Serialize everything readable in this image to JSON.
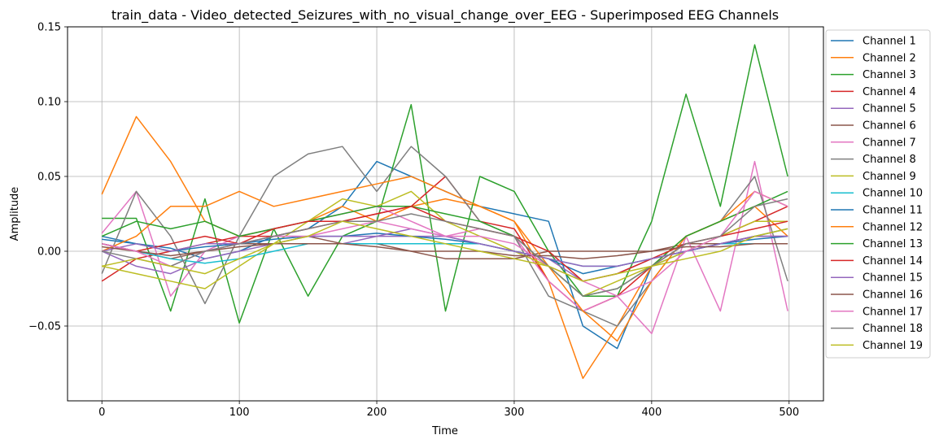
{
  "chart_data": {
    "type": "line",
    "title": "train_data - Video_detected_Seizures_with_no_visual_change_over_EEG - Superimposed EEG Channels",
    "xlabel": "Time",
    "ylabel": "Amplitude",
    "xlim": [
      -25,
      525
    ],
    "ylim": [
      -0.1,
      0.15
    ],
    "xticks": [
      0,
      100,
      200,
      300,
      400,
      500
    ],
    "xtick_labels": [
      "0",
      "100",
      "200",
      "300",
      "400",
      "500"
    ],
    "yticks": [
      -0.05,
      0.0,
      0.05,
      0.1,
      0.15
    ],
    "ytick_labels": [
      "−0.05",
      "0.00",
      "0.05",
      "0.10",
      "0.15"
    ],
    "grid": true,
    "legend": {
      "position": "outside-right"
    },
    "x": [
      0,
      25,
      50,
      75,
      100,
      125,
      150,
      175,
      200,
      225,
      250,
      275,
      300,
      325,
      350,
      375,
      400,
      425,
      450,
      475,
      499
    ],
    "series": [
      {
        "name": "Channel 1",
        "color": "#1f77b4",
        "values": [
          0.01,
          0.005,
          0.002,
          -0.005,
          0.0,
          0.01,
          0.015,
          0.03,
          0.06,
          0.05,
          0.04,
          0.03,
          0.025,
          0.02,
          -0.05,
          -0.065,
          -0.01,
          0.0,
          0.005,
          0.01,
          0.015
        ]
      },
      {
        "name": "Channel 2",
        "color": "#ff7f0e",
        "values": [
          0.038,
          0.09,
          0.06,
          0.02,
          0.01,
          0.015,
          0.02,
          0.03,
          0.02,
          0.03,
          0.035,
          0.03,
          0.02,
          -0.02,
          -0.085,
          -0.05,
          -0.01,
          0.01,
          0.02,
          0.03,
          0.01
        ]
      },
      {
        "name": "Channel 3",
        "color": "#2ca02c",
        "values": [
          0.022,
          0.022,
          -0.04,
          0.035,
          -0.048,
          0.015,
          -0.03,
          0.01,
          0.02,
          0.098,
          -0.04,
          0.05,
          0.04,
          0.0,
          -0.03,
          -0.03,
          0.02,
          0.105,
          0.03,
          0.138,
          0.05
        ]
      },
      {
        "name": "Channel 4",
        "color": "#d62728",
        "values": [
          -0.02,
          -0.005,
          0.0,
          0.005,
          0.01,
          0.01,
          0.015,
          0.02,
          0.025,
          0.03,
          0.05,
          0.02,
          0.015,
          -0.02,
          -0.04,
          -0.03,
          -0.01,
          0.005,
          0.01,
          0.02,
          0.03
        ]
      },
      {
        "name": "Channel 5",
        "color": "#9467bd",
        "values": [
          0.0,
          -0.01,
          -0.015,
          -0.005,
          0.0,
          0.005,
          0.005,
          0.005,
          0.01,
          0.01,
          0.01,
          0.005,
          0.0,
          -0.005,
          -0.02,
          -0.015,
          -0.005,
          0.0,
          0.005,
          0.01,
          0.01
        ]
      },
      {
        "name": "Channel 6",
        "color": "#8c564b",
        "values": [
          0.005,
          0.0,
          -0.005,
          0.0,
          0.005,
          0.005,
          0.01,
          0.005,
          0.005,
          0.0,
          -0.005,
          -0.005,
          -0.005,
          0.0,
          0.0,
          0.0,
          0.0,
          0.005,
          0.005,
          0.01,
          0.01
        ]
      },
      {
        "name": "Channel 7",
        "color": "#e377c2",
        "values": [
          0.012,
          0.04,
          -0.03,
          0.0,
          0.01,
          0.015,
          0.02,
          0.025,
          0.03,
          0.02,
          0.01,
          0.015,
          0.01,
          -0.02,
          -0.04,
          -0.03,
          -0.055,
          0.01,
          -0.04,
          0.06,
          -0.04
        ]
      },
      {
        "name": "Channel 8",
        "color": "#7f7f7f",
        "values": [
          -0.015,
          0.04,
          0.01,
          -0.035,
          0.01,
          0.05,
          0.065,
          0.07,
          0.04,
          0.07,
          0.05,
          0.02,
          0.01,
          -0.03,
          -0.04,
          -0.05,
          -0.02,
          0.01,
          0.02,
          0.05,
          -0.02
        ]
      },
      {
        "name": "Channel 9",
        "color": "#bcbd22",
        "values": [
          -0.01,
          -0.015,
          -0.02,
          -0.025,
          -0.01,
          0.005,
          0.02,
          0.035,
          0.03,
          0.04,
          0.02,
          0.01,
          0.0,
          -0.01,
          -0.03,
          -0.02,
          -0.01,
          0.0,
          0.01,
          0.02,
          0.02
        ]
      },
      {
        "name": "Channel 10",
        "color": "#17becf",
        "values": [
          0.005,
          0.0,
          -0.005,
          -0.008,
          -0.005,
          0.0,
          0.005,
          0.005,
          0.005,
          0.005,
          0.005,
          0.005,
          0.0,
          -0.005,
          -0.01,
          -0.01,
          -0.005,
          0.0,
          0.005,
          0.005,
          0.005
        ]
      },
      {
        "name": "Channel 11",
        "color": "#1f77b4",
        "values": [
          0.008,
          0.005,
          0.0,
          0.003,
          0.005,
          0.008,
          0.01,
          0.01,
          0.012,
          0.01,
          0.008,
          0.005,
          0.0,
          -0.005,
          -0.015,
          -0.01,
          -0.005,
          0.0,
          0.005,
          0.008,
          0.01
        ]
      },
      {
        "name": "Channel 12",
        "color": "#ff7f0e",
        "values": [
          0.0,
          0.01,
          0.03,
          0.03,
          0.04,
          0.03,
          0.035,
          0.04,
          0.045,
          0.05,
          0.04,
          0.03,
          0.02,
          -0.01,
          -0.04,
          -0.06,
          -0.02,
          0.01,
          0.02,
          0.04,
          0.03
        ]
      },
      {
        "name": "Channel 13",
        "color": "#2ca02c",
        "values": [
          0.01,
          0.02,
          0.015,
          0.02,
          0.01,
          0.015,
          0.02,
          0.025,
          0.03,
          0.03,
          0.025,
          0.02,
          0.01,
          -0.01,
          -0.03,
          -0.025,
          -0.01,
          0.01,
          0.02,
          0.03,
          0.04
        ]
      },
      {
        "name": "Channel 14",
        "color": "#d62728",
        "values": [
          0.005,
          0.0,
          0.005,
          0.01,
          0.005,
          0.015,
          0.02,
          0.02,
          0.025,
          0.03,
          0.02,
          0.015,
          0.01,
          0.0,
          -0.02,
          -0.015,
          -0.005,
          0.005,
          0.01,
          0.015,
          0.02
        ]
      },
      {
        "name": "Channel 15",
        "color": "#9467bd",
        "values": [
          0.0,
          0.005,
          0.0,
          0.005,
          0.005,
          0.01,
          0.01,
          0.01,
          0.01,
          0.015,
          0.01,
          0.005,
          0.0,
          -0.005,
          -0.01,
          -0.01,
          -0.005,
          0.0,
          0.005,
          0.01,
          0.01
        ]
      },
      {
        "name": "Channel 16",
        "color": "#8c564b",
        "values": [
          0.003,
          0.0,
          -0.003,
          0.0,
          0.003,
          0.005,
          0.005,
          0.005,
          0.003,
          0.0,
          0.0,
          0.0,
          -0.003,
          -0.003,
          -0.005,
          -0.003,
          0.0,
          0.003,
          0.003,
          0.005,
          0.005
        ]
      },
      {
        "name": "Channel 17",
        "color": "#e377c2",
        "values": [
          0.005,
          0.0,
          -0.01,
          0.0,
          0.005,
          0.01,
          0.01,
          0.015,
          0.02,
          0.015,
          0.01,
          0.01,
          0.005,
          -0.01,
          -0.02,
          -0.03,
          -0.02,
          0.0,
          0.01,
          0.04,
          0.03
        ]
      },
      {
        "name": "Channel 18",
        "color": "#7f7f7f",
        "values": [
          0.0,
          -0.005,
          -0.01,
          0.0,
          0.005,
          0.01,
          0.015,
          0.02,
          0.02,
          0.025,
          0.02,
          0.015,
          0.01,
          -0.01,
          -0.03,
          -0.025,
          -0.01,
          0.005,
          0.01,
          0.03,
          0.035
        ]
      },
      {
        "name": "Channel 19",
        "color": "#bcbd22",
        "values": [
          -0.01,
          -0.005,
          -0.01,
          -0.015,
          -0.005,
          0.005,
          0.01,
          0.02,
          0.015,
          0.01,
          0.005,
          0.0,
          -0.005,
          -0.01,
          -0.02,
          -0.015,
          -0.01,
          -0.005,
          0.0,
          0.01,
          0.015
        ]
      }
    ]
  }
}
